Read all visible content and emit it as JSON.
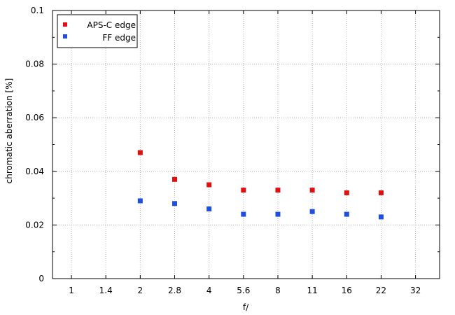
{
  "chart_data": {
    "type": "scatter",
    "title": "",
    "xlabel": "f/",
    "ylabel": "chromatic aberration [%]",
    "x_categories": [
      "1",
      "1.4",
      "2",
      "2.8",
      "4",
      "5.6",
      "8",
      "11",
      "16",
      "22",
      "32"
    ],
    "ylim": [
      0,
      0.1
    ],
    "y_ticks": [
      "0",
      "0.02",
      "0.04",
      "0.06",
      "0.08",
      "0.1"
    ],
    "y_tick_values": [
      0,
      0.02,
      0.04,
      0.06,
      0.08,
      0.1
    ],
    "grid": true,
    "legend_position": "top-left",
    "series": [
      {
        "name": "APS-C edge",
        "color": "#e01010",
        "points": [
          {
            "x": "2",
            "y": 0.047
          },
          {
            "x": "2.8",
            "y": 0.037
          },
          {
            "x": "4",
            "y": 0.035
          },
          {
            "x": "5.6",
            "y": 0.033
          },
          {
            "x": "8",
            "y": 0.033
          },
          {
            "x": "11",
            "y": 0.033
          },
          {
            "x": "16",
            "y": 0.032
          },
          {
            "x": "22",
            "y": 0.032
          }
        ]
      },
      {
        "name": "FF edge",
        "color": "#1f4fe0",
        "points": [
          {
            "x": "2",
            "y": 0.029
          },
          {
            "x": "2.8",
            "y": 0.028
          },
          {
            "x": "4",
            "y": 0.026
          },
          {
            "x": "5.6",
            "y": 0.024
          },
          {
            "x": "8",
            "y": 0.024
          },
          {
            "x": "11",
            "y": 0.025
          },
          {
            "x": "16",
            "y": 0.024
          },
          {
            "x": "22",
            "y": 0.023
          }
        ]
      }
    ]
  }
}
